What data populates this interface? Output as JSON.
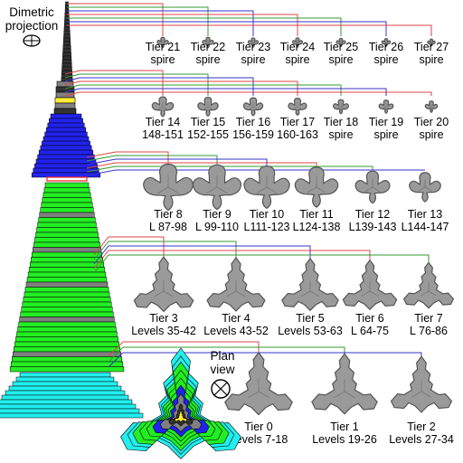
{
  "title": {
    "line1": "Dimetric",
    "line2": "projection"
  },
  "plan_view": {
    "line1": "Plan",
    "line2": "view"
  },
  "colors": {
    "outline": "#000000",
    "plan_gray": "#9a9a9a",
    "plan_edge": "#555555",
    "tower_green": "#22ee22",
    "tower_blue": "#2222ee",
    "tower_cyan": "#22eeee",
    "tower_gray": "#808080",
    "tower_dark": "#333333",
    "tower_yellow": "#ffee33",
    "tower_red": "#ee2222",
    "leader_red": "#dd4444",
    "leader_green": "#339933",
    "leader_blue": "#3333cc"
  },
  "spire_row": [
    {
      "line1": "Tier 21",
      "line2": "spire"
    },
    {
      "line1": "Tier 22",
      "line2": "spire"
    },
    {
      "line1": "Tier 23",
      "line2": "spire"
    },
    {
      "line1": "Tier 24",
      "line2": "spire"
    },
    {
      "line1": "Tier 25",
      "line2": "spire"
    },
    {
      "line1": "Tier 26",
      "line2": "spire"
    },
    {
      "line1": "Tier 27",
      "line2": "spire"
    }
  ],
  "upper_row": [
    {
      "line1": "Tier 14",
      "line2": "148-151"
    },
    {
      "line1": "Tier 15",
      "line2": "152-155"
    },
    {
      "line1": "Tier 16",
      "line2": "156-159"
    },
    {
      "line1": "Tier 17",
      "line2": "160-163"
    },
    {
      "line1": "Tier 18",
      "line2": "spire"
    },
    {
      "line1": "Tier 19",
      "line2": "spire"
    },
    {
      "line1": "Tier 20",
      "line2": "spire"
    }
  ],
  "middle_row": [
    {
      "line1": "Tier 8",
      "line2": "L 87-98"
    },
    {
      "line1": "Tier 9",
      "line2": "L 99-110"
    },
    {
      "line1": "Tier 10",
      "line2": "L111-123"
    },
    {
      "line1": "Tier 11",
      "line2": "L124-138"
    },
    {
      "line1": "Tier 12",
      "line2": "L139-143"
    },
    {
      "line1": "Tier 13",
      "line2": "L144-147"
    }
  ],
  "lower_row": [
    {
      "line1": "Tier 3",
      "line2": "Levels 35-42"
    },
    {
      "line1": "Tier 4",
      "line2": "Levels 43-52"
    },
    {
      "line1": "Tier 5",
      "line2": "Levels 53-63"
    },
    {
      "line1": "Tier 6",
      "line2": "L 64-75"
    },
    {
      "line1": "Tier 7",
      "line2": "L 76-86"
    }
  ],
  "base_row": [
    {
      "line1": "Tier 0",
      "line2": "Levels 7-18"
    },
    {
      "line1": "Tier 1",
      "line2": "Levels 19-26"
    },
    {
      "line1": "Tier 2",
      "line2": "Levels 27-34"
    }
  ]
}
